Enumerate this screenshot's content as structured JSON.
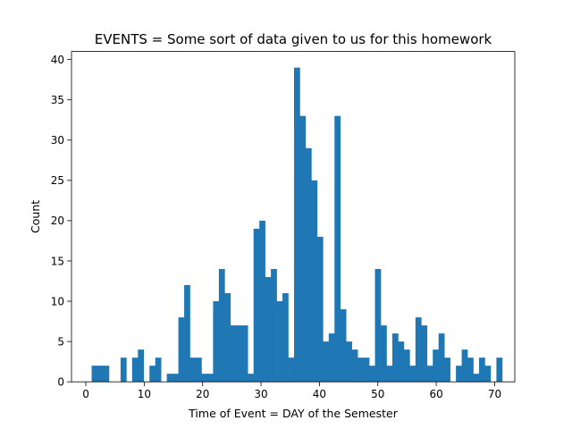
{
  "chart_data": {
    "type": "bar",
    "title": "EVENTS = Some sort of data given to us for this homework",
    "xlabel": "Time of Event = DAY of the Semester",
    "ylabel": "Count",
    "xlim": [
      -2.45,
      73.45
    ],
    "ylim": [
      0,
      41
    ],
    "xticks": [
      0,
      10,
      20,
      30,
      40,
      50,
      60,
      70
    ],
    "yticks": [
      0,
      5,
      10,
      15,
      20,
      25,
      30,
      35,
      40
    ],
    "bin_start": 1,
    "bin_width": 0.99,
    "counts": [
      2,
      2,
      2,
      0,
      0,
      3,
      0,
      3,
      4,
      0,
      2,
      3,
      0,
      1,
      1,
      8,
      12,
      3,
      3,
      1,
      1,
      10,
      14,
      11,
      7,
      7,
      7,
      1,
      19,
      20,
      13,
      14,
      10,
      11,
      3,
      39,
      33,
      29,
      25,
      18,
      5,
      6,
      33,
      9,
      5,
      4,
      3,
      3,
      2,
      14,
      7,
      2,
      6,
      5,
      4,
      2,
      8,
      7,
      2,
      4,
      6,
      3,
      0,
      2,
      4,
      3,
      1,
      3,
      2,
      0,
      3
    ],
    "bar_color": "#1f77b4",
    "grid": false
  }
}
